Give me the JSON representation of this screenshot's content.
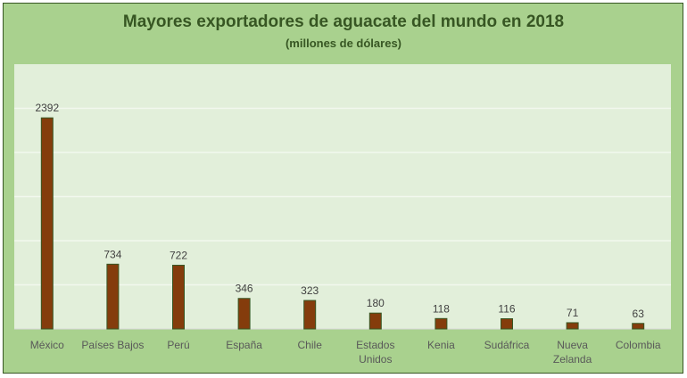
{
  "chart_data": {
    "type": "bar",
    "title": "Mayores exportadores de aguacate del mundo en 2018",
    "subtitle": "(millones de dólares)",
    "categories": [
      [
        "México"
      ],
      [
        "Países Bajos"
      ],
      [
        "Perú"
      ],
      [
        "España"
      ],
      [
        "Chile"
      ],
      [
        "Estados",
        "Unidos"
      ],
      [
        "Kenia"
      ],
      [
        "Sudáfrica"
      ],
      [
        "Nueva",
        "Zelanda"
      ],
      [
        "Colombia"
      ]
    ],
    "values": [
      2392,
      734,
      722,
      346,
      323,
      180,
      118,
      116,
      71,
      63
    ],
    "xlabel": "",
    "ylabel": "",
    "ylim": [
      0,
      3000
    ],
    "grid_step": 500,
    "grid": true,
    "legend": "none",
    "colors": {
      "bar": "#843c0c",
      "bar_border": "#375623",
      "plot_bg": "#e2efda",
      "frame_bg": "#a9d18e",
      "grid": "#f2f8ee",
      "title": "#375623",
      "text": "#404040"
    }
  }
}
